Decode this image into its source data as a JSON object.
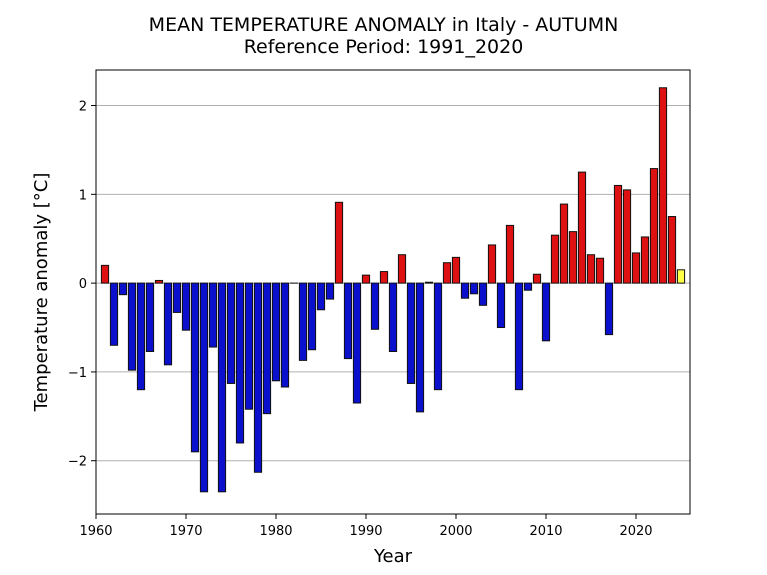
{
  "chart_data": {
    "type": "bar",
    "title": "MEAN TEMPERATURE ANOMALY in Italy - AUTUMN",
    "subtitle": "Reference Period: 1991_2020",
    "xlabel": "Year",
    "ylabel": "Temperature anomaly [°C]",
    "xlim": [
      1960,
      2026
    ],
    "ylim": [
      -2.6,
      2.4
    ],
    "xticks": [
      1960,
      1970,
      1980,
      1990,
      2000,
      2010,
      2020
    ],
    "yticks": [
      -2,
      -1,
      0,
      1,
      2
    ],
    "grid": "horizontal",
    "colors": {
      "positive": "#dd1111",
      "negative": "#0a10cc",
      "current": "#ffff44",
      "edge": "#111111",
      "grid": "#b0b0b0"
    },
    "current_year": 2025,
    "x": [
      1961,
      1962,
      1963,
      1964,
      1965,
      1966,
      1967,
      1968,
      1969,
      1970,
      1971,
      1972,
      1973,
      1974,
      1975,
      1976,
      1977,
      1978,
      1979,
      1980,
      1981,
      1982,
      1983,
      1984,
      1985,
      1986,
      1987,
      1988,
      1989,
      1990,
      1991,
      1992,
      1993,
      1994,
      1995,
      1996,
      1997,
      1998,
      1999,
      2000,
      2001,
      2002,
      2003,
      2004,
      2005,
      2006,
      2007,
      2008,
      2009,
      2010,
      2011,
      2012,
      2013,
      2014,
      2015,
      2016,
      2017,
      2018,
      2019,
      2020,
      2021,
      2022,
      2023,
      2024,
      2025
    ],
    "values": [
      0.2,
      -0.7,
      -0.13,
      -0.98,
      -1.2,
      -0.77,
      0.03,
      -0.92,
      -0.33,
      -0.53,
      -1.9,
      -2.35,
      -0.72,
      -2.35,
      -1.13,
      -1.8,
      -1.42,
      -2.13,
      -1.47,
      -1.1,
      -1.17,
      0.0,
      -0.87,
      -0.75,
      -0.3,
      -0.18,
      0.91,
      -0.85,
      -1.35,
      0.09,
      -0.52,
      0.13,
      -0.77,
      0.32,
      -1.13,
      -1.45,
      0.01,
      -1.2,
      0.23,
      0.29,
      -0.17,
      -0.12,
      -0.25,
      0.43,
      -0.5,
      0.65,
      -1.2,
      -0.08,
      0.1,
      -0.65,
      0.54,
      0.89,
      0.58,
      1.25,
      0.32,
      0.28,
      -0.58,
      1.1,
      1.05,
      0.34,
      0.52,
      1.29,
      2.2,
      0.75,
      0.15
    ]
  }
}
